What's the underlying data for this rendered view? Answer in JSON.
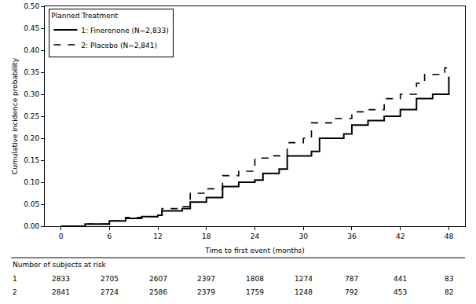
{
  "chart_data": {
    "type": "line",
    "xlabel": "Time to first event (months)",
    "ylabel": "Cumulative incidence probability",
    "legend": "upper left",
    "legend_title": "Planned Treatment",
    "xlim": [
      -2,
      50
    ],
    "xticks": [
      0,
      6,
      12,
      18,
      24,
      30,
      36,
      42,
      48
    ],
    "ylim": [
      0,
      0.5
    ],
    "yticks": [
      {
        "value": 0,
        "label": "0.00"
      },
      {
        "value": 0.05,
        "label": "0.05"
      },
      {
        "value": 0.1,
        "label": "0.10"
      },
      {
        "value": 0.15,
        "label": "0.15"
      },
      {
        "value": 0.2,
        "label": "0.20"
      },
      {
        "value": 0.25,
        "label": "0.25"
      },
      {
        "value": 0.3,
        "label": "0.30"
      },
      {
        "value": 0.35,
        "label": "0.35"
      },
      {
        "value": 0.4,
        "label": "0.40"
      },
      {
        "value": 0.45,
        "label": "0.45"
      },
      {
        "value": 0.5,
        "label": "0.50"
      }
    ],
    "grid": false,
    "series": [
      {
        "name": "1: Finerenone (N=2,833)",
        "color": "#000000",
        "line_style": "solid",
        "x": [
          0,
          3,
          6,
          8,
          10,
          12,
          12.5,
          15,
          16,
          18,
          20,
          22,
          24,
          25,
          27,
          28,
          31,
          32,
          35,
          36,
          38,
          40,
          42,
          44,
          46,
          47.5,
          48
        ],
        "values": [
          0,
          0.005,
          0.012,
          0.018,
          0.022,
          0.025,
          0.035,
          0.04,
          0.055,
          0.065,
          0.09,
          0.1,
          0.105,
          0.12,
          0.13,
          0.16,
          0.17,
          0.2,
          0.21,
          0.23,
          0.24,
          0.25,
          0.265,
          0.29,
          0.3,
          0.3,
          0.34
        ]
      },
      {
        "name": "2: Placebo (N=2,841)",
        "color": "#000000",
        "line_style": "dash",
        "x": [
          0,
          3,
          6,
          8,
          10,
          12,
          12.5,
          15,
          16,
          18,
          20,
          22,
          24,
          26,
          28,
          30,
          31,
          34,
          36,
          38,
          40,
          42,
          44,
          45,
          47,
          47.5,
          48
        ],
        "values": [
          0,
          0.005,
          0.012,
          0.02,
          0.022,
          0.025,
          0.04,
          0.045,
          0.075,
          0.085,
          0.115,
          0.125,
          0.155,
          0.16,
          0.19,
          0.2,
          0.235,
          0.245,
          0.26,
          0.265,
          0.29,
          0.3,
          0.325,
          0.345,
          0.35,
          0.36,
          0.37
        ]
      }
    ],
    "risk_table": {
      "title": "Number of subjects at risk",
      "x": [
        0,
        6,
        12,
        18,
        24,
        30,
        36,
        42,
        48
      ],
      "rows": [
        {
          "label": "1",
          "values": [
            2833,
            2705,
            2607,
            2397,
            1808,
            1274,
            787,
            441,
            83
          ]
        },
        {
          "label": "2",
          "values": [
            2841,
            2724,
            2586,
            2379,
            1759,
            1248,
            792,
            453,
            82
          ]
        }
      ]
    }
  }
}
